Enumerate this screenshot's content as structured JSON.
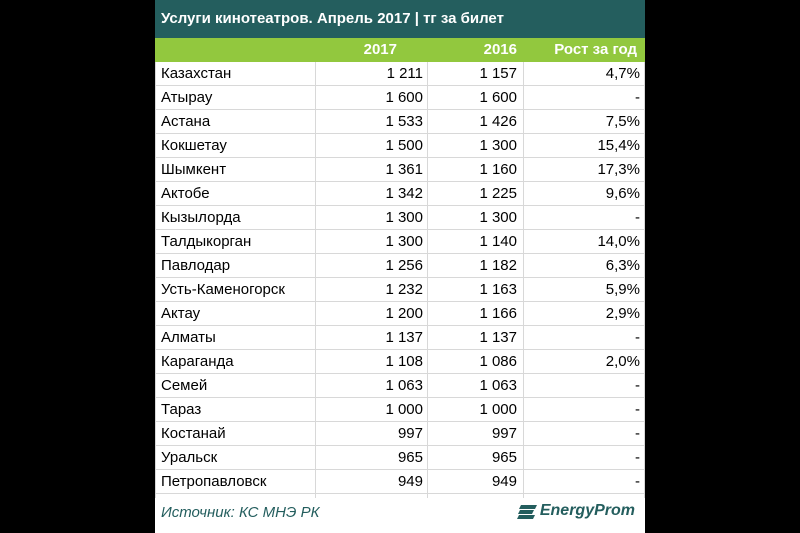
{
  "header": {
    "title": "Услуги кинотеатров. Апрель 2017 | тг за билет"
  },
  "table": {
    "columns": [
      "2017",
      "2016",
      "Рост за год"
    ],
    "rows": [
      [
        "Казахстан",
        "1 211",
        "1 157",
        "4,7%"
      ],
      [
        "Атырау",
        "1 600",
        "1 600",
        "-"
      ],
      [
        "Астана",
        "1 533",
        "1 426",
        "7,5%"
      ],
      [
        "Кокшетау",
        "1 500",
        "1 300",
        "15,4%"
      ],
      [
        "Шымкент",
        "1 361",
        "1 160",
        "17,3%"
      ],
      [
        "Актобе",
        "1 342",
        "1 225",
        "9,6%"
      ],
      [
        "Кызылорда",
        "1 300",
        "1 300",
        "-"
      ],
      [
        "Талдыкорган",
        "1 300",
        "1 140",
        "14,0%"
      ],
      [
        "Павлодар",
        "1 256",
        "1 182",
        "6,3%"
      ],
      [
        "Усть-Каменогорск",
        "1 232",
        "1 163",
        "5,9%"
      ],
      [
        "Актау",
        "1 200",
        "1 166",
        "2,9%"
      ],
      [
        "Алматы",
        "1 137",
        "1 137",
        "-"
      ],
      [
        "Караганда",
        "1 108",
        "1 086",
        "2,0%"
      ],
      [
        "Семей",
        "1 063",
        "1 063",
        "-"
      ],
      [
        "Тараз",
        "1 000",
        "1 000",
        "-"
      ],
      [
        "Костанай",
        "997",
        "997",
        "-"
      ],
      [
        "Уральск",
        "965",
        "965",
        "-"
      ],
      [
        "Петропавловск",
        "949",
        "949",
        "-"
      ]
    ]
  },
  "footer": {
    "source": "Источник: КС МНЭ РК",
    "logo": "EnergyProm"
  }
}
